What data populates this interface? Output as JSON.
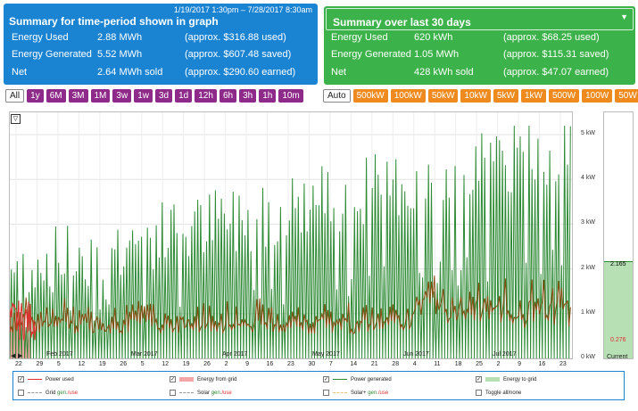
{
  "summary_range": {
    "range_text": "1/19/2017 1:30pm – 7/28/2017 8:30am",
    "title": "Summary for time-period shown in graph",
    "rows": [
      {
        "label": "Energy Used",
        "value": "2.88 MWh",
        "approx": "(approx. $316.88 used)"
      },
      {
        "label": "Energy Generated",
        "value": "5.52 MWh",
        "approx": "(approx. $607.48 saved)"
      },
      {
        "label": "Net",
        "value": "2.64 MWh sold",
        "approx": "(approx. $290.60 earned)"
      }
    ]
  },
  "summary_30": {
    "title": "Summary over last 30 days",
    "chevron_icon": "chevron-down-icon",
    "rows": [
      {
        "label": "Energy Used",
        "value": "620 kWh",
        "approx": "(approx. $68.25 used)"
      },
      {
        "label": "Energy Generated",
        "value": "1.05 MWh",
        "approx": "(approx. $115.31 saved)"
      },
      {
        "label": "Net",
        "value": "428 kWh sold",
        "approx": "(approx. $47.07 earned)"
      }
    ]
  },
  "time_buttons": [
    "All",
    "1y",
    "6M",
    "3M",
    "1M",
    "3w",
    "1w",
    "3d",
    "1d",
    "12h",
    "6h",
    "3h",
    "1h",
    "10m"
  ],
  "time_selected": "All",
  "scale_buttons": [
    "Auto",
    "500kW",
    "100kW",
    "50kW",
    "10kW",
    "5kW",
    "1kW",
    "500W",
    "100W",
    "50W"
  ],
  "scale_selected": "Auto",
  "colors": {
    "used": "#e23030",
    "generated": "#2e8b35",
    "net": "#8a4a10",
    "blue": "#1a83d2",
    "purple": "#8e2a8a",
    "orange": "#ee8a1e"
  },
  "chart_data": {
    "type": "line",
    "ylabel": "",
    "y_ticks": [
      "0 kW",
      "1 kW",
      "2 kW",
      "3 kW",
      "4 kW",
      "5 kW"
    ],
    "ylim": [
      0,
      5.3
    ],
    "month_labels": [
      "Feb 2017",
      "Mar 2017",
      "Apr 2017",
      "May 2017",
      "Jun 2017",
      "Jul 2017"
    ],
    "day_labels": [
      "22",
      "29",
      "5",
      "12",
      "19",
      "26",
      "5",
      "12",
      "19",
      "26",
      "2",
      "9",
      "16",
      "23",
      "30",
      "7",
      "14",
      "21",
      "28",
      "4",
      "11",
      "18",
      "25",
      "2",
      "9",
      "16",
      "23"
    ],
    "series": [
      {
        "name": "Power generated",
        "peak_range_kw": [
          0.8,
          5.3
        ],
        "trend": "rising"
      },
      {
        "name": "Power used",
        "typical_kw": [
          0.4,
          1.5
        ]
      }
    ],
    "grid": true
  },
  "current": {
    "label": "Current",
    "generated": "2.165",
    "used": "0.276",
    "generated_kw": 2.165,
    "used_kw": 0.276
  },
  "legend": {
    "items": [
      {
        "label": "Power used"
      },
      {
        "label": "Energy from grid"
      },
      {
        "label": "Power generated"
      },
      {
        "label": "Energy to grid"
      },
      {
        "label": "Grid",
        "gen": "gen.",
        "use": "/use"
      },
      {
        "label": "Solar",
        "gen": "gen.",
        "use": "/use"
      },
      {
        "label": "Solar+",
        "gen": "gen.",
        "use": "/use"
      },
      {
        "label": "Toggle all/none"
      }
    ]
  }
}
